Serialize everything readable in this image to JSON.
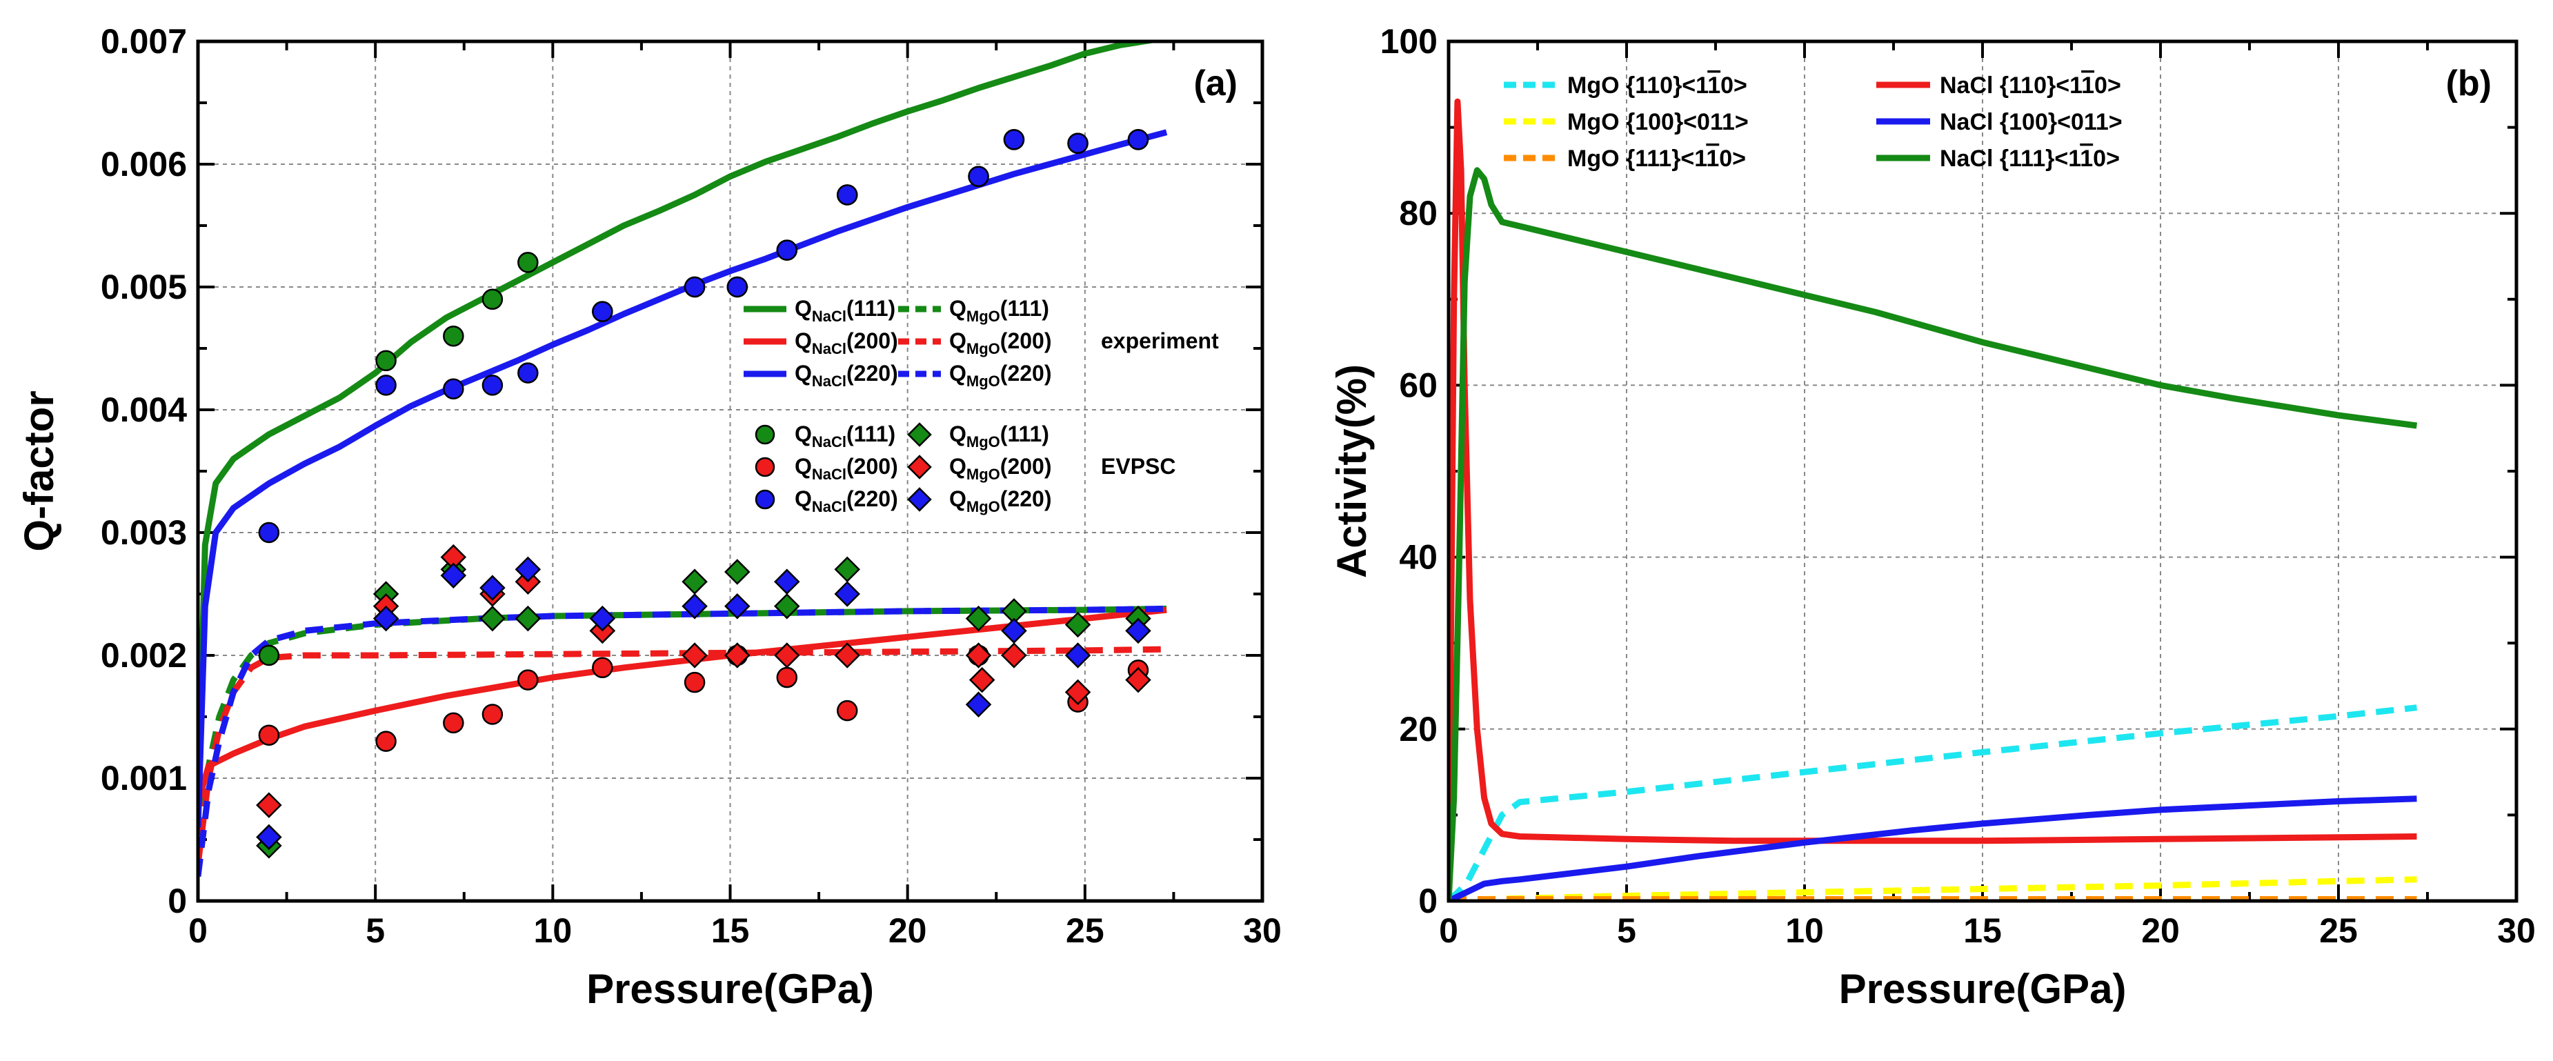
{
  "chart_data": [
    {
      "id": "a",
      "type": "line+scatter",
      "panel_label": "(a)",
      "xlabel": "Pressure(GPa)",
      "ylabel": "Q-factor",
      "xlim": [
        0,
        30
      ],
      "ylim": [
        0,
        0.007
      ],
      "xticks": [
        0,
        5,
        10,
        15,
        20,
        25,
        30
      ],
      "yticks": [
        0,
        0.001,
        0.002,
        0.003,
        0.004,
        0.005,
        0.006,
        0.007
      ],
      "ytick_labels": [
        "0",
        "0.001",
        "0.002",
        "0.003",
        "0.004",
        "0.005",
        "0.006",
        "0.007"
      ],
      "grid": true,
      "legend_groups": [
        {
          "tag": "experiment",
          "entries": [
            "NaCl111_exp",
            "MgO111_exp",
            "NaCl200_exp",
            "MgO200_exp",
            "NaCl220_exp",
            "MgO220_exp"
          ]
        },
        {
          "tag": "EVPSC",
          "entries": [
            "NaCl111_evpsc",
            "MgO111_evpsc",
            "NaCl200_evpsc",
            "MgO200_evpsc",
            "NaCl220_evpsc",
            "MgO220_evpsc"
          ]
        }
      ],
      "series": [
        {
          "key": "NaCl111_exp",
          "q": "Q",
          "sub": "NaCl",
          "hkl": "(111)",
          "style": "solid",
          "color": "#158a15",
          "x": [
            0,
            0.2,
            0.5,
            1,
            2,
            3,
            4,
            5,
            6,
            7,
            8,
            9,
            10,
            11,
            12,
            13,
            14,
            15,
            16,
            17,
            18,
            19,
            20,
            21,
            22,
            23,
            24,
            25,
            26,
            27.3
          ],
          "y": [
            0.0007,
            0.0029,
            0.0034,
            0.0036,
            0.0038,
            0.00395,
            0.0041,
            0.0043,
            0.00455,
            0.00475,
            0.0049,
            0.00505,
            0.0052,
            0.00535,
            0.0055,
            0.00562,
            0.00575,
            0.0059,
            0.00602,
            0.00612,
            0.00622,
            0.00633,
            0.00643,
            0.00652,
            0.00662,
            0.00671,
            0.0068,
            0.0069,
            0.00697,
            0.00703
          ]
        },
        {
          "key": "MgO111_exp",
          "q": "Q",
          "sub": "MgO",
          "hkl": "(111)",
          "style": "dashed",
          "color": "#158a15",
          "x": [
            0,
            0.3,
            0.6,
            1,
            1.5,
            2,
            3,
            5,
            8,
            10,
            15,
            20,
            25,
            27.3
          ],
          "y": [
            0.0003,
            0.0011,
            0.0015,
            0.0018,
            0.002,
            0.0021,
            0.00218,
            0.00225,
            0.0023,
            0.00232,
            0.00234,
            0.00236,
            0.00237,
            0.00238
          ]
        },
        {
          "key": "NaCl200_exp",
          "q": "Q",
          "sub": "NaCl",
          "hkl": "(200)",
          "style": "solid",
          "color": "#ee1c1c",
          "x": [
            0,
            0.3,
            1,
            2,
            3,
            5,
            7,
            10,
            12,
            15,
            20,
            25,
            27.3
          ],
          "y": [
            0.0008,
            0.0011,
            0.0012,
            0.00132,
            0.00142,
            0.00155,
            0.00167,
            0.00182,
            0.0019,
            0.002,
            0.00215,
            0.0023,
            0.00237
          ]
        },
        {
          "key": "MgO200_exp",
          "q": "Q",
          "sub": "MgO",
          "hkl": "(200)",
          "style": "dashed",
          "color": "#ee1c1c",
          "x": [
            0,
            0.3,
            0.6,
            1,
            1.5,
            2,
            3,
            5,
            10,
            15,
            20,
            25,
            27.3
          ],
          "y": [
            0.0003,
            0.001,
            0.0014,
            0.0017,
            0.0019,
            0.00198,
            0.002,
            0.002,
            0.00201,
            0.00202,
            0.00203,
            0.00204,
            0.00205
          ]
        },
        {
          "key": "NaCl220_exp",
          "q": "Q",
          "sub": "NaCl",
          "hkl": "(220)",
          "style": "solid",
          "color": "#1a1aee",
          "x": [
            0,
            0.2,
            0.5,
            1,
            2,
            3,
            4,
            5,
            6,
            7,
            8,
            9,
            10,
            11,
            12,
            13,
            14,
            15,
            16,
            17,
            18,
            19,
            20,
            21,
            22,
            23,
            24,
            25,
            26,
            27.3
          ],
          "y": [
            0.0006,
            0.0024,
            0.003,
            0.0032,
            0.0034,
            0.00356,
            0.0037,
            0.00387,
            0.00403,
            0.00416,
            0.00428,
            0.0044,
            0.00453,
            0.00465,
            0.00478,
            0.0049,
            0.00502,
            0.00513,
            0.00523,
            0.00534,
            0.00545,
            0.00555,
            0.00565,
            0.00574,
            0.00583,
            0.00592,
            0.006,
            0.00608,
            0.00616,
            0.00626
          ]
        },
        {
          "key": "MgO220_exp",
          "q": "Q",
          "sub": "MgO",
          "hkl": "(220)",
          "style": "dashed",
          "color": "#1a1aee",
          "x": [
            0,
            0.3,
            0.6,
            1,
            1.5,
            2,
            3,
            5,
            8,
            10,
            15,
            20,
            25,
            27.3
          ],
          "y": [
            0.0002,
            0.0009,
            0.0013,
            0.0017,
            0.002,
            0.00212,
            0.0022,
            0.00226,
            0.0023,
            0.00232,
            0.00234,
            0.00236,
            0.00237,
            0.00238
          ]
        },
        {
          "key": "NaCl111_evpsc",
          "q": "Q",
          "sub": "NaCl",
          "hkl": "(111)",
          "marker": "circle",
          "color": "#158a15",
          "x": [
            2,
            5.3,
            7.2,
            8.3,
            9.3,
            11.4,
            14,
            15.2,
            16.6,
            18.3,
            22,
            23,
            24.8,
            26.5
          ],
          "y": [
            0.002,
            0.0044,
            0.0046,
            0.0049,
            0.0052,
            0.0048,
            0.005,
            0.005,
            0.0053,
            0.00575,
            0.0059,
            0.0062,
            0.00617,
            0.0062
          ]
        },
        {
          "key": "NaCl200_evpsc",
          "q": "Q",
          "sub": "NaCl",
          "hkl": "(200)",
          "marker": "circle",
          "color": "#ee1c1c",
          "x": [
            2,
            5.3,
            7.2,
            8.3,
            9.3,
            11.4,
            14,
            15.2,
            16.6,
            18.3,
            22,
            24.8,
            26.5
          ],
          "y": [
            0.00135,
            0.0013,
            0.00145,
            0.00152,
            0.0018,
            0.0019,
            0.00178,
            0.002,
            0.00182,
            0.00155,
            0.002,
            0.00162,
            0.00188
          ]
        },
        {
          "key": "NaCl220_evpsc",
          "q": "Q",
          "sub": "NaCl",
          "hkl": "(220)",
          "marker": "circle",
          "color": "#1a1aee",
          "x": [
            2,
            5.3,
            7.2,
            8.3,
            9.3,
            11.4,
            14,
            15.2,
            16.6,
            18.3,
            22,
            23,
            24.8,
            26.5
          ],
          "y": [
            0.003,
            0.0042,
            0.00417,
            0.0042,
            0.0043,
            0.0048,
            0.005,
            0.005,
            0.0053,
            0.00575,
            0.0059,
            0.0062,
            0.00617,
            0.0062
          ]
        },
        {
          "key": "MgO111_evpsc",
          "q": "Q",
          "sub": "MgO",
          "hkl": "(111)",
          "marker": "diamond",
          "color": "#158a15",
          "x": [
            2,
            5.3,
            7.2,
            8.3,
            9.3,
            11.4,
            14,
            15.2,
            16.6,
            18.3,
            22,
            23,
            24.8,
            26.5
          ],
          "y": [
            0.00045,
            0.0025,
            0.0027,
            0.0023,
            0.0023,
            0.0022,
            0.0026,
            0.00268,
            0.0024,
            0.0027,
            0.0023,
            0.00236,
            0.00225,
            0.0023
          ]
        },
        {
          "key": "MgO200_evpsc",
          "q": "Q",
          "sub": "MgO",
          "hkl": "(200)",
          "marker": "diamond",
          "color": "#ee1c1c",
          "x": [
            2,
            5.3,
            7.2,
            8.3,
            9.3,
            11.4,
            14,
            15.2,
            16.6,
            18.3,
            22,
            22.1,
            23,
            24.8,
            26.5
          ],
          "y": [
            0.00078,
            0.0024,
            0.0028,
            0.0025,
            0.0026,
            0.0022,
            0.002,
            0.002,
            0.002,
            0.002,
            0.002,
            0.0018,
            0.002,
            0.0017,
            0.0018
          ]
        },
        {
          "key": "MgO220_evpsc",
          "q": "Q",
          "sub": "MgO",
          "hkl": "(220)",
          "marker": "diamond",
          "color": "#1a1aee",
          "x": [
            2,
            5.3,
            7.2,
            8.3,
            9.3,
            11.4,
            14,
            15.2,
            16.6,
            18.3,
            22,
            23,
            24.8,
            26.5
          ],
          "y": [
            0.00052,
            0.0023,
            0.00265,
            0.00255,
            0.0027,
            0.0023,
            0.0024,
            0.0024,
            0.0026,
            0.0025,
            0.0016,
            0.0022,
            0.002,
            0.0022
          ]
        }
      ]
    },
    {
      "id": "b",
      "type": "line",
      "panel_label": "(b)",
      "xlabel": "Pressure(GPa)",
      "ylabel": "Activity(%)",
      "xlim": [
        0,
        30
      ],
      "ylim": [
        0,
        100
      ],
      "xticks": [
        0,
        5,
        10,
        15,
        20,
        25,
        30
      ],
      "yticks": [
        0,
        20,
        40,
        60,
        80,
        100
      ],
      "ytick_labels": [
        "0",
        "20",
        "40",
        "60",
        "80",
        "100"
      ],
      "grid": true,
      "series": [
        {
          "key": "MgO110",
          "name": "MgO {110}<1",
          "bar": "1",
          "tail": "0>",
          "style": "dashed",
          "color": "#1ee6f0",
          "x": [
            0,
            0.5,
            1,
            1.5,
            2,
            5,
            10,
            15,
            20,
            25,
            27.2
          ],
          "y": [
            0,
            2,
            6,
            10,
            11.5,
            12.7,
            15,
            17.3,
            19.5,
            21.5,
            22.5
          ]
        },
        {
          "key": "MgO100",
          "name": "MgO {100}<011>",
          "style": "dashed",
          "color": "#ffff00",
          "x": [
            0,
            1,
            5,
            10,
            15,
            20,
            25,
            27.2
          ],
          "y": [
            0,
            0.2,
            0.6,
            1.0,
            1.4,
            1.8,
            2.3,
            2.5
          ]
        },
        {
          "key": "MgO111",
          "name": "MgO {111}<1",
          "bar": "1",
          "tail": "0>",
          "style": "dashed",
          "color": "#ff8c00",
          "x": [
            0,
            5,
            10,
            15,
            20,
            25,
            27.2
          ],
          "y": [
            0.2,
            0.2,
            0.2,
            0.2,
            0.2,
            0.2,
            0.2
          ]
        },
        {
          "key": "NaCl110",
          "name": "NaCl {110}<1",
          "bar": "1",
          "tail": "0>",
          "style": "solid",
          "color": "#ee1c1c",
          "x": [
            0,
            0.15,
            0.25,
            0.35,
            0.45,
            0.6,
            0.8,
            1,
            1.2,
            1.5,
            2,
            3,
            5,
            8,
            10,
            15,
            20,
            25,
            27.2
          ],
          "y": [
            0,
            70,
            93,
            85,
            60,
            35,
            20,
            12,
            9,
            7.8,
            7.5,
            7.4,
            7.2,
            7.0,
            7.0,
            7.0,
            7.2,
            7.4,
            7.5
          ]
        },
        {
          "key": "NaCl100",
          "name": "NaCl {100}<011>",
          "style": "solid",
          "color": "#1a1aee",
          "x": [
            0,
            0.5,
            1,
            1.5,
            2,
            3,
            5,
            7,
            10,
            13,
            15,
            18,
            20,
            23,
            25,
            27.2
          ],
          "y": [
            0,
            1,
            2,
            2.3,
            2.5,
            3,
            4,
            5.2,
            6.8,
            8.2,
            9,
            10,
            10.6,
            11.2,
            11.6,
            11.9
          ]
        },
        {
          "key": "NaCl111",
          "name": "NaCl {111}<1",
          "bar": "1",
          "tail": "0>",
          "style": "solid",
          "color": "#158a15",
          "x": [
            0,
            0.15,
            0.3,
            0.45,
            0.6,
            0.8,
            1,
            1.2,
            1.5,
            2,
            3,
            5,
            8,
            10,
            12,
            15,
            18,
            20,
            22,
            25,
            27.2
          ],
          "y": [
            0,
            12,
            40,
            72,
            82,
            85,
            84,
            81,
            79,
            78.5,
            77.5,
            75.5,
            72.5,
            70.5,
            68.5,
            65,
            62,
            60,
            58.5,
            56.5,
            55.3
          ]
        }
      ]
    }
  ],
  "legend_a": {
    "rows": [
      {
        "series": [
          "NaCl111_exp",
          "MgO111_exp"
        ],
        "tag": ""
      },
      {
        "series": [
          "NaCl200_exp",
          "MgO200_exp"
        ],
        "tag": "experiment"
      },
      {
        "series": [
          "NaCl220_exp",
          "MgO220_exp"
        ],
        "tag": ""
      },
      {
        "series": [
          "NaCl111_evpsc",
          "MgO111_evpsc"
        ],
        "tag": ""
      },
      {
        "series": [
          "NaCl200_evpsc",
          "MgO200_evpsc"
        ],
        "tag": "EVPSC"
      },
      {
        "series": [
          "NaCl220_evpsc",
          "MgO220_evpsc"
        ],
        "tag": ""
      }
    ]
  }
}
